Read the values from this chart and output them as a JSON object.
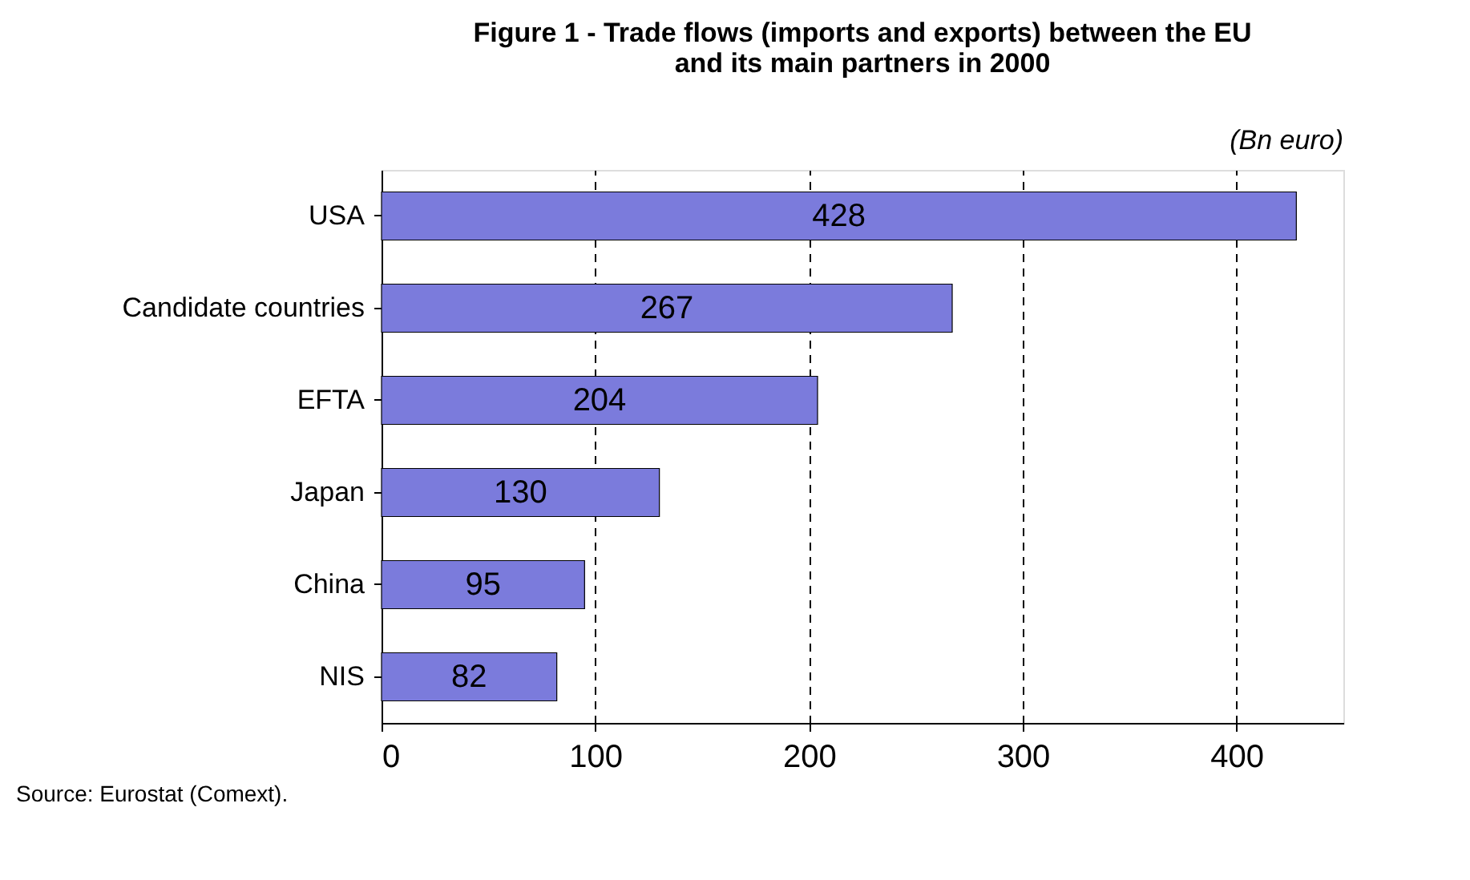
{
  "chart_data": {
    "type": "bar",
    "orientation": "horizontal",
    "title": "Figure 1 - Trade flows (imports and exports) between the EU\nand its main partners in 2000",
    "categories": [
      "USA",
      "Candidate countries",
      "EFTA",
      "Japan",
      "China",
      "NIS"
    ],
    "values": [
      428,
      267,
      204,
      130,
      95,
      82
    ],
    "color": "#7b7bdc",
    "xlim": [
      0,
      450
    ],
    "xticks": [
      0,
      100,
      200,
      300,
      400
    ],
    "grid": "x",
    "data_labels": true,
    "annotations": [
      "(Bn euro)",
      "Source: Eurostat (Comext)."
    ]
  }
}
